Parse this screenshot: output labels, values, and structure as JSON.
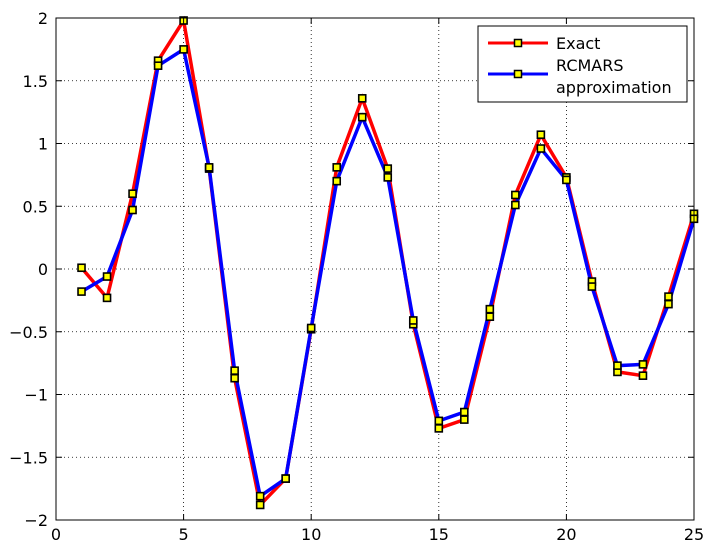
{
  "chart_data": {
    "type": "line",
    "title": "",
    "xlabel": "",
    "ylabel": "",
    "xlim": [
      0,
      25
    ],
    "ylim": [
      -2,
      2
    ],
    "xticks": [
      0,
      5,
      10,
      15,
      20,
      25
    ],
    "yticks": [
      -2,
      -1.5,
      -1,
      -0.5,
      0,
      0.5,
      1,
      1.5,
      2
    ],
    "xtick_labels": [
      "0",
      "5",
      "10",
      "15",
      "20",
      "25"
    ],
    "ytick_labels": [
      "−2",
      "−1.5",
      "−1",
      "−0.5",
      "0",
      "0.5",
      "1",
      "1.5",
      "2"
    ],
    "grid": true,
    "legend_position": "top-right",
    "marker": "square",
    "marker_edge_color": "#000000",
    "marker_face_color": "#ffff00",
    "x": [
      1,
      2,
      3,
      4,
      5,
      6,
      7,
      8,
      9,
      10,
      11,
      12,
      13,
      14,
      15,
      16,
      17,
      18,
      19,
      20,
      21,
      22,
      23,
      24,
      25
    ],
    "series": [
      {
        "name": "Exact",
        "color": "#ff0000",
        "values": [
          0.01,
          -0.23,
          0.6,
          1.66,
          1.98,
          0.8,
          -0.87,
          -1.88,
          -1.67,
          -0.48,
          0.81,
          1.36,
          0.8,
          -0.44,
          -1.27,
          -1.2,
          -0.38,
          0.59,
          1.07,
          0.73,
          -0.1,
          -0.82,
          -0.85,
          -0.22,
          0.44
        ]
      },
      {
        "name": "RCMARS",
        "name_line2": "approximation",
        "color": "#0000ff",
        "values": [
          -0.18,
          -0.06,
          0.47,
          1.62,
          1.75,
          0.81,
          -0.81,
          -1.81,
          -1.67,
          -0.47,
          0.7,
          1.21,
          0.73,
          -0.41,
          -1.21,
          -1.14,
          -0.32,
          0.51,
          0.96,
          0.71,
          -0.14,
          -0.77,
          -0.76,
          -0.28,
          0.4
        ]
      }
    ]
  }
}
